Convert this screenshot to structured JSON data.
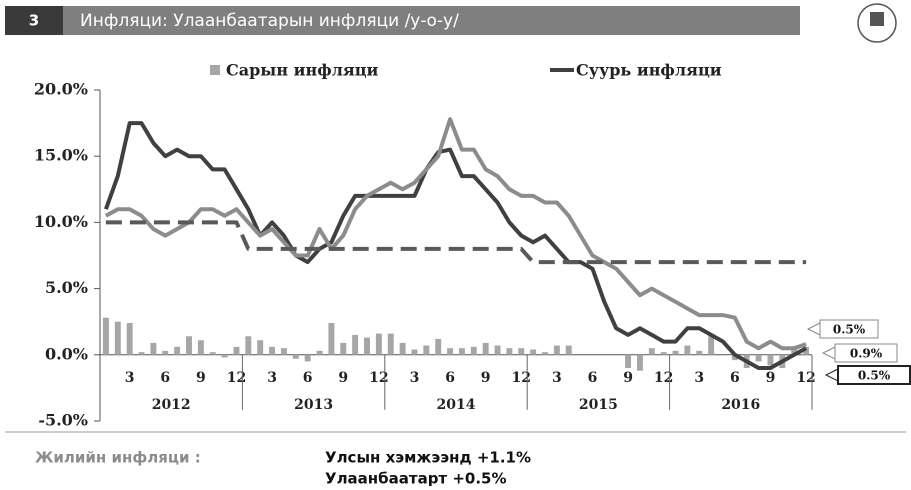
{
  "header": {
    "number": "3",
    "title": "Инфляци: Улаанбаатарын инфляци /у-о-у/"
  },
  "chart_data": {
    "type": "combo",
    "categories": [
      null,
      null,
      "3",
      null,
      null,
      "6",
      null,
      null,
      "9",
      null,
      null,
      "12",
      null,
      null,
      "3",
      null,
      null,
      "6",
      null,
      null,
      "9",
      null,
      null,
      "12",
      null,
      null,
      "3",
      null,
      null,
      "6",
      null,
      null,
      "9",
      null,
      null,
      "12",
      null,
      null,
      "3",
      null,
      null,
      "6",
      null,
      null,
      "9",
      null,
      null,
      "12",
      null,
      null,
      "3",
      null,
      null,
      "6",
      null,
      null,
      "9",
      null,
      null,
      "12"
    ],
    "years": [
      "2012",
      "2013",
      "2014",
      "2015",
      "2016"
    ],
    "ylim": [
      -5,
      20
    ],
    "yticks": [
      {
        "value": -5,
        "label": "-5.0%"
      },
      {
        "value": 0,
        "label": "0.0%"
      },
      {
        "value": 5,
        "label": "5.0%"
      },
      {
        "value": 10,
        "label": "10.0%"
      },
      {
        "value": 15,
        "label": "15.0%"
      },
      {
        "value": 20,
        "label": "20.0%"
      }
    ],
    "series": [
      {
        "name": "Сарын инфляци",
        "type": "bar",
        "color": "#a6a6a6",
        "values": [
          2.8,
          2.5,
          2.4,
          0.2,
          0.9,
          0.3,
          0.6,
          1.4,
          1.1,
          0.2,
          -0.2,
          0.6,
          1.4,
          1.1,
          0.6,
          0.5,
          -0.3,
          -0.5,
          0.3,
          2.4,
          0.9,
          1.5,
          1.3,
          1.6,
          1.6,
          0.9,
          0.4,
          0.7,
          1.2,
          0.5,
          0.5,
          0.6,
          0.9,
          0.7,
          0.5,
          0.5,
          0.4,
          0.2,
          0.7,
          0.7,
          0,
          0,
          0,
          0,
          -1,
          -1.2,
          0.5,
          0.2,
          0.3,
          0.7,
          0.3,
          1.4,
          0,
          -0.4,
          -1,
          -0.5,
          -0.8,
          -1,
          0.6,
          0.6
        ]
      },
      {
        "name": "Суурь инфляци",
        "type": "line",
        "color": "#404040",
        "values": [
          11,
          13.5,
          17.5,
          17.5,
          16,
          15,
          15.5,
          15,
          15,
          14,
          14,
          12.5,
          11,
          9,
          10,
          9,
          7.5,
          7,
          8,
          8.5,
          10.5,
          12,
          12,
          12,
          12,
          12,
          12,
          14,
          15.3,
          15.5,
          13.5,
          13.5,
          12.5,
          11.5,
          10,
          9,
          8.5,
          9,
          8,
          7,
          7,
          6.5,
          4,
          2,
          1.5,
          2,
          1.5,
          1,
          1,
          2,
          2,
          1.5,
          1,
          0,
          -0.5,
          -1,
          -1,
          -0.5,
          0,
          0.5
        ]
      },
      {
        "type": "line",
        "color": "#8c8c8c",
        "values": [
          10.5,
          11,
          11,
          10.5,
          9.5,
          9,
          9.5,
          10,
          11,
          11,
          10.5,
          11,
          10,
          9,
          9.5,
          8.5,
          7.5,
          7.5,
          9.5,
          8,
          9,
          11,
          12,
          12.5,
          13,
          12.5,
          13,
          14,
          15,
          17.8,
          15.5,
          15.5,
          14,
          13.5,
          12.5,
          12,
          12,
          11.5,
          11.5,
          10.5,
          9,
          7.5,
          7,
          6.5,
          5.5,
          4.5,
          5,
          4.5,
          4,
          3.5,
          3,
          3,
          3,
          2.8,
          1,
          0.5,
          1,
          0.5,
          0.5,
          0.8
        ]
      },
      {
        "type": "dashed",
        "color": "#595959",
        "values": [
          10,
          10,
          10,
          10,
          10,
          10,
          10,
          10,
          10,
          10,
          10,
          10,
          8,
          8,
          8,
          8,
          8,
          8,
          8,
          8,
          8,
          8,
          8,
          8,
          8,
          8,
          8,
          8,
          8,
          8,
          8,
          8,
          8,
          8,
          8,
          8,
          7,
          7,
          7,
          7,
          7,
          7,
          7,
          7,
          7,
          7,
          7,
          7,
          7,
          7,
          7,
          7,
          7,
          7,
          7,
          7,
          7,
          7,
          7,
          7
        ]
      }
    ],
    "annotations": [
      "0.5%",
      "0.9%",
      "0.5%"
    ]
  },
  "footer": {
    "label": "Жилийн инфляци :",
    "lines": [
      "Улсын хэмжээнд +1.1%",
      "Улаанбаатарт +0.5%"
    ]
  }
}
